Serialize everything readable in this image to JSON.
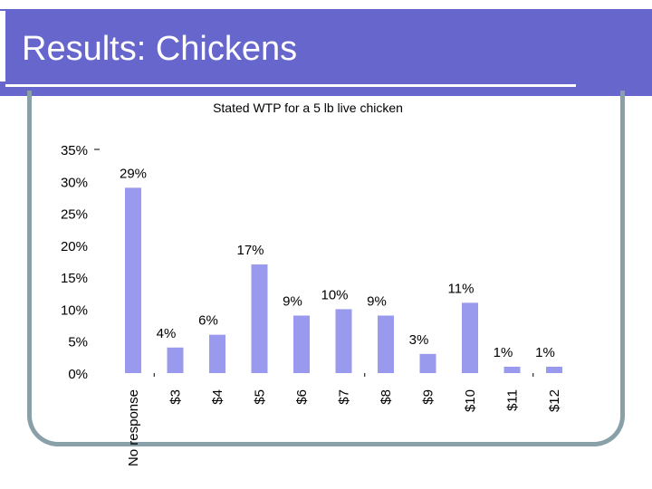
{
  "slide": {
    "title": "Results: Chickens"
  },
  "colors": {
    "header": "#6666cc",
    "bar": "#9999ee",
    "frame": "#8aa0a8"
  },
  "chart_data": {
    "type": "bar",
    "title": "Stated WTP for a 5 lb live chicken",
    "xlabel": "",
    "ylabel": "",
    "categories": [
      "No response",
      "$3",
      "$4",
      "$5",
      "$6",
      "$7",
      "$8",
      "$9",
      "$10",
      "$11",
      "$12"
    ],
    "values": [
      29,
      4,
      6,
      17,
      9,
      10,
      9,
      3,
      11,
      1,
      1
    ],
    "data_labels": [
      "29%",
      "4%",
      "6%",
      "17%",
      "9%",
      "10%",
      "9%",
      "3%",
      "11%",
      "1%",
      "1%"
    ],
    "yticks": [
      "0%",
      "5%",
      "10%",
      "15%",
      "20%",
      "25%",
      "30%",
      "35%"
    ],
    "ylim": [
      0,
      35
    ],
    "grid": false,
    "legend": "none"
  }
}
